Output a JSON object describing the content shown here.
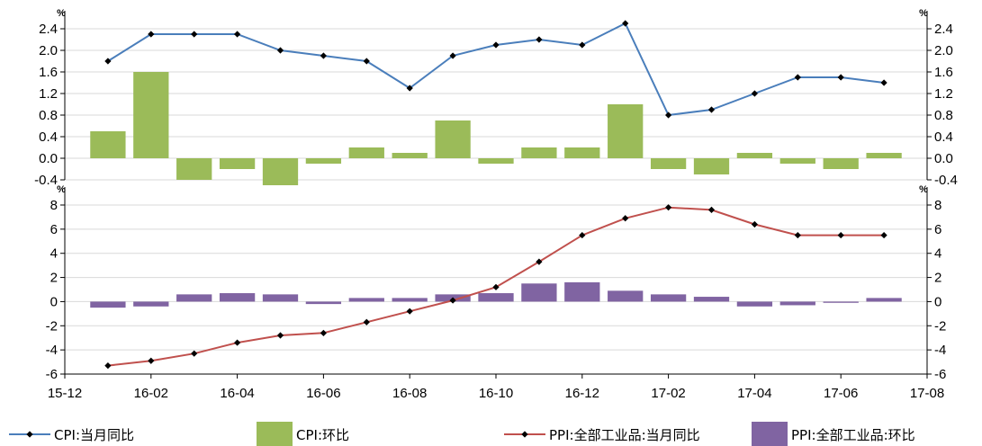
{
  "chart_data": [
    {
      "panel": "top",
      "type": "bar+line",
      "unit_left": "%",
      "unit_right": "%",
      "ylim": [
        -0.4,
        2.4
      ],
      "yticks": [
        "2.4",
        "2.0",
        "1.6",
        "1.2",
        "0.8",
        "0.4",
        "0.0",
        "-0.4"
      ],
      "grid": true,
      "series": [
        {
          "name": "CPI:当月同比",
          "kind": "line",
          "color": "#4a7ebb",
          "values": [
            1.8,
            2.3,
            2.3,
            2.3,
            2.0,
            1.9,
            1.8,
            1.3,
            1.9,
            2.1,
            2.2,
            2.1,
            2.5,
            0.8,
            0.9,
            1.2,
            1.5,
            1.5,
            1.4
          ]
        },
        {
          "name": "CPI:环比",
          "kind": "bar",
          "color": "#9bbb59",
          "values": [
            0.5,
            1.6,
            -0.4,
            -0.2,
            -0.5,
            -0.1,
            0.2,
            0.1,
            0.7,
            -0.1,
            0.2,
            0.2,
            1.0,
            -0.2,
            -0.3,
            0.1,
            -0.1,
            -0.2,
            0.1
          ]
        }
      ]
    },
    {
      "panel": "bottom",
      "type": "bar+line",
      "unit_left": "%",
      "unit_right": "%",
      "ylim": [
        -6,
        8
      ],
      "yticks": [
        "8",
        "6",
        "4",
        "2",
        "0",
        "-2",
        "-4",
        "-6"
      ],
      "grid": true,
      "series": [
        {
          "name": "PPI:全部工业品:当月同比",
          "kind": "line",
          "color": "#c0504d",
          "values": [
            -5.3,
            -4.9,
            -4.3,
            -3.4,
            -2.8,
            -2.6,
            -1.7,
            -0.8,
            0.1,
            1.2,
            3.3,
            5.5,
            6.9,
            7.8,
            7.6,
            6.4,
            5.5,
            5.5,
            5.5
          ]
        },
        {
          "name": "PPI:全部工业品:环比",
          "kind": "bar",
          "color": "#8064a2",
          "values": [
            -0.5,
            -0.4,
            0.6,
            0.7,
            0.6,
            -0.2,
            0.3,
            0.3,
            0.6,
            0.7,
            1.5,
            1.6,
            0.9,
            0.6,
            0.4,
            -0.4,
            -0.3,
            -0.1,
            0.3
          ]
        }
      ]
    }
  ],
  "x_axis": {
    "categories": [
      "2016-01",
      "2016-02",
      "2016-03",
      "2016-04",
      "2016-05",
      "2016-06",
      "2016-07",
      "2016-08",
      "2016-09",
      "2016-10",
      "2016-11",
      "2016-12",
      "2017-01",
      "2017-02",
      "2017-03",
      "2017-04",
      "2017-05",
      "2017-06",
      "2017-07"
    ],
    "tick_labels": [
      "15-12",
      "16-02",
      "16-04",
      "16-06",
      "16-08",
      "16-10",
      "16-12",
      "17-02",
      "17-04",
      "17-06",
      "17-08"
    ]
  },
  "legend": {
    "placement": "bottom",
    "items": [
      {
        "label": "CPI:当月同比",
        "kind": "line",
        "color": "#4a7ebb"
      },
      {
        "label": "CPI:环比",
        "kind": "bar",
        "color": "#9bbb59"
      },
      {
        "label": "PPI:全部工业品:当月同比",
        "kind": "line",
        "color": "#c0504d"
      },
      {
        "label": "PPI:全部工业品:环比",
        "kind": "bar",
        "color": "#8064a2"
      }
    ]
  }
}
